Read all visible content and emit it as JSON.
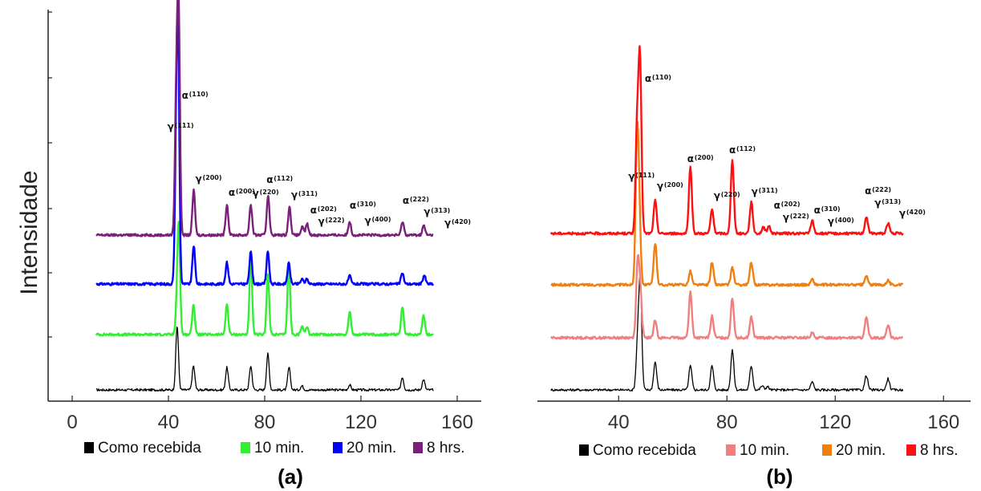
{
  "chart_data": [
    {
      "panel": "(a)",
      "type": "line",
      "ylabel": "Intensidade",
      "xlim": [
        -10,
        170
      ],
      "xticks": [
        0,
        40,
        80,
        120,
        160
      ],
      "legend": {
        "position": "bottom"
      },
      "series": [
        {
          "name": "Como recebida",
          "color": "#000000",
          "offset": 0,
          "x": [
            10,
            150
          ],
          "peaks": [
            [
              43.6,
              80
            ],
            [
              50.4,
              30
            ],
            [
              64.3,
              28
            ],
            [
              74.2,
              30
            ],
            [
              81.3,
              45
            ],
            [
              90.1,
              28
            ],
            [
              95.5,
              5
            ],
            [
              115.3,
              6
            ],
            [
              137.2,
              16
            ],
            [
              146,
              13
            ]
          ]
        },
        {
          "name": "10 min.",
          "color": "#33ee33",
          "offset": 1,
          "x": [
            10,
            150
          ],
          "peaks": [
            [
              43.5,
              30
            ],
            [
              44.3,
              130
            ],
            [
              50.4,
              38
            ],
            [
              64.3,
              38
            ],
            [
              74.2,
              94
            ],
            [
              81.3,
              75
            ],
            [
              90,
              90
            ],
            [
              95.5,
              10
            ],
            [
              97.5,
              10
            ],
            [
              115.3,
              28
            ],
            [
              137.2,
              35
            ],
            [
              146,
              25
            ]
          ]
        },
        {
          "name": "20 min.",
          "color": "#0000ff",
          "offset": 2,
          "x": [
            10,
            150
          ],
          "peaks": [
            [
              43.2,
              146
            ],
            [
              44,
              280
            ],
            [
              50.5,
              48
            ],
            [
              64.3,
              27
            ],
            [
              74.2,
              40
            ],
            [
              81.3,
              41
            ],
            [
              90,
              26
            ],
            [
              95.5,
              6
            ],
            [
              97.5,
              6
            ],
            [
              115.3,
              10
            ],
            [
              137.2,
              14
            ],
            [
              146.3,
              11
            ]
          ]
        },
        {
          "name": "8 hrs.",
          "color": "#7a1f7a",
          "offset": 3,
          "x": [
            10,
            150
          ],
          "peaks": [
            [
              43.2,
              155
            ],
            [
              44.2,
              283
            ],
            [
              50.5,
              56
            ],
            [
              64.3,
              38
            ],
            [
              74.2,
              38
            ],
            [
              81.4,
              50
            ],
            [
              90.3,
              35
            ],
            [
              95.6,
              10
            ],
            [
              97.6,
              14
            ],
            [
              115.3,
              17
            ],
            [
              137.3,
              17
            ],
            [
              146.1,
              12
            ]
          ]
        }
      ],
      "annotations": [
        {
          "greek": "γ",
          "hkl": "(111)",
          "x": 43.2
        },
        {
          "greek": "α",
          "hkl": "(110)",
          "x": 44.2
        },
        {
          "greek": "γ",
          "hkl": "(200)",
          "x": 50.5
        },
        {
          "greek": "α",
          "hkl": "(200)",
          "x": 64.3
        },
        {
          "greek": "γ",
          "hkl": "(220)",
          "x": 74.2
        },
        {
          "greek": "α",
          "hkl": "(112)",
          "x": 81.4
        },
        {
          "greek": "γ",
          "hkl": "(311)",
          "x": 90.3
        },
        {
          "greek": "α",
          "hkl": "(202)",
          "x": 97.6
        },
        {
          "greek": "γ",
          "hkl": "(222)",
          "x": 101.5
        },
        {
          "greek": "α",
          "hkl": "(310)",
          "x": 115.3
        },
        {
          "greek": "γ",
          "hkl": "(400)",
          "x": 119.5
        },
        {
          "greek": "α",
          "hkl": "(222)",
          "x": 137.3
        },
        {
          "greek": "γ",
          "hkl": "(313)",
          "x": 146.1
        },
        {
          "greek": "γ",
          "hkl": "(420)",
          "x": 154
        }
      ]
    },
    {
      "panel": "(b)",
      "type": "line",
      "ylabel": "",
      "xlim": [
        10,
        170
      ],
      "xticks": [
        40,
        80,
        120,
        160
      ],
      "legend": {
        "position": "bottom"
      },
      "series": [
        {
          "name": "Como recebida",
          "color": "#000000",
          "offset": 0,
          "x": [
            15,
            145
          ],
          "peaks": [
            [
              47,
              55
            ],
            [
              48,
              130
            ],
            [
              53.5,
              35
            ],
            [
              66.5,
              30
            ],
            [
              74.5,
              30
            ],
            [
              82,
              50
            ],
            [
              89,
              30
            ],
            [
              93,
              5
            ],
            [
              95,
              4
            ],
            [
              111.5,
              10
            ],
            [
              131.5,
              18
            ],
            [
              139.5,
              14
            ]
          ]
        },
        {
          "name": "10 min.",
          "color": "#f08080",
          "offset": 1,
          "x": [
            15,
            145
          ],
          "peaks": [
            [
              47,
              90
            ],
            [
              48,
              55
            ],
            [
              53.5,
              22
            ],
            [
              66.5,
              57
            ],
            [
              74.5,
              27
            ],
            [
              82,
              50
            ],
            [
              89,
              26
            ],
            [
              111.5,
              6
            ],
            [
              131.5,
              25
            ],
            [
              139.5,
              16
            ]
          ]
        },
        {
          "name": "20 min.",
          "color": "#f07f10",
          "offset": 2,
          "x": [
            15,
            145
          ],
          "peaks": [
            [
              46.8,
              172
            ],
            [
              47.6,
              78
            ],
            [
              53.5,
              52
            ],
            [
              66.5,
              17
            ],
            [
              74.5,
              28
            ],
            [
              82,
              22
            ],
            [
              89,
              28
            ],
            [
              111.5,
              7
            ],
            [
              131.5,
              11
            ],
            [
              139.5,
              6
            ]
          ]
        },
        {
          "name": "8 hrs.",
          "color": "#ff1010",
          "offset": 3,
          "x": [
            15,
            145
          ],
          "peaks": [
            [
              46.8,
              128
            ],
            [
              47.9,
              211
            ],
            [
              53.5,
              41
            ],
            [
              66.5,
              82
            ],
            [
              74.5,
              30
            ],
            [
              82,
              93
            ],
            [
              89,
              39
            ],
            [
              93.5,
              8
            ],
            [
              95.5,
              9
            ],
            [
              111.5,
              16
            ],
            [
              131.5,
              21
            ],
            [
              139.5,
              13
            ]
          ]
        }
      ],
      "annotations": [
        {
          "greek": "γ",
          "hkl": "(111)",
          "x": 46.8
        },
        {
          "greek": "α",
          "hkl": "(110)",
          "x": 47.9
        },
        {
          "greek": "γ",
          "hkl": "(200)",
          "x": 53.5
        },
        {
          "greek": "α",
          "hkl": "(200)",
          "x": 66.5
        },
        {
          "greek": "γ",
          "hkl": "(220)",
          "x": 74.5
        },
        {
          "greek": "α",
          "hkl": "(112)",
          "x": 82
        },
        {
          "greek": "γ",
          "hkl": "(311)",
          "x": 89
        },
        {
          "greek": "α",
          "hkl": "(202)",
          "x": 95.5
        },
        {
          "greek": "γ",
          "hkl": "(222)",
          "x": 100
        },
        {
          "greek": "α",
          "hkl": "(310)",
          "x": 111.5
        },
        {
          "greek": "γ",
          "hkl": "(400)",
          "x": 116
        },
        {
          "greek": "α",
          "hkl": "(222)",
          "x": 131.5
        },
        {
          "greek": "γ",
          "hkl": "(313)",
          "x": 134.5
        },
        {
          "greek": "γ",
          "hkl": "(420)",
          "x": 143
        }
      ]
    }
  ]
}
